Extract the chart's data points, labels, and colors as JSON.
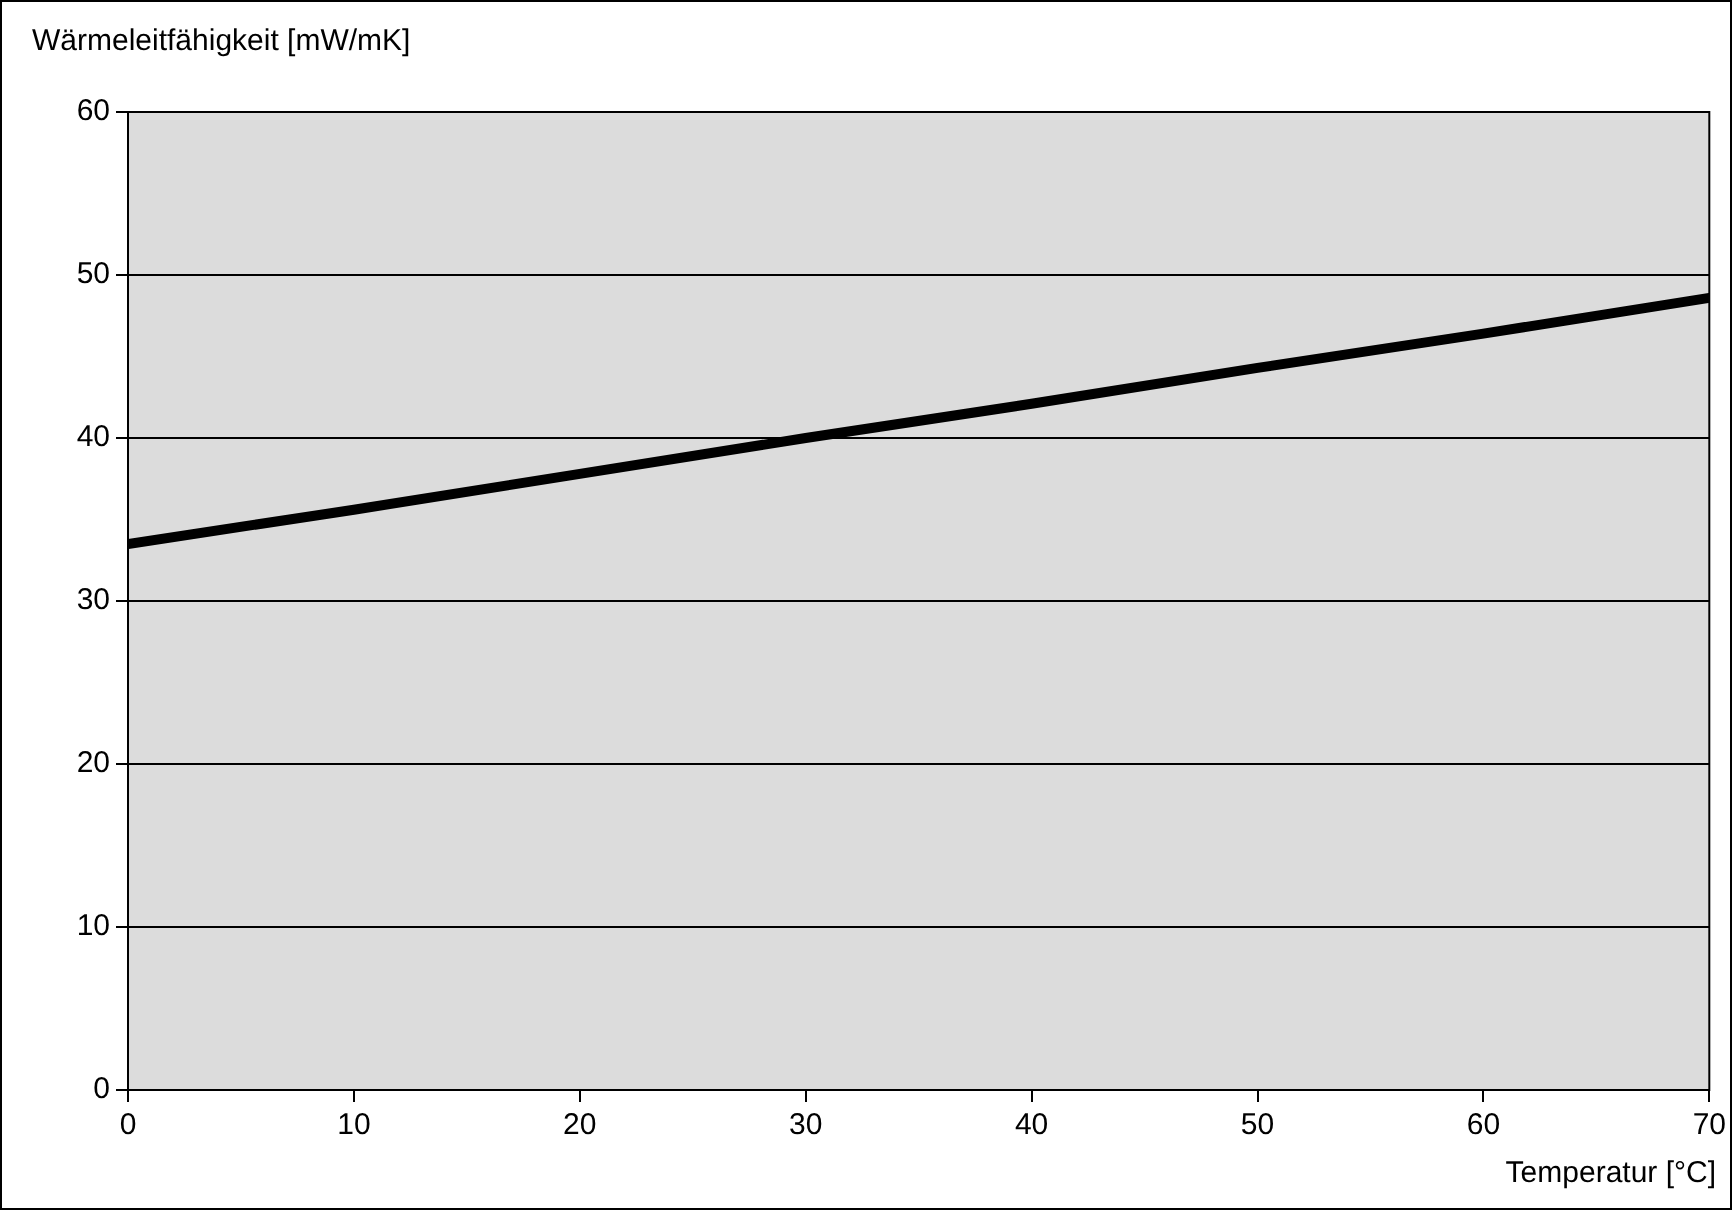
{
  "chart_data": {
    "type": "line",
    "xlabel": "Temperatur [°C]",
    "ylabel": "Wärmeleitfähigkeit [mW/mK]",
    "x": [
      0,
      10,
      20,
      30,
      40,
      50,
      60,
      70
    ],
    "series": [
      {
        "color": "#000000",
        "values": [
          33.5,
          35.6,
          37.8,
          40.0,
          42.1,
          44.3,
          46.4,
          48.6
        ]
      }
    ],
    "xlim": [
      0,
      70
    ],
    "xticks": [
      0,
      10,
      20,
      30,
      40,
      50,
      60,
      70
    ],
    "ylim": [
      0,
      60
    ],
    "yticks": [
      0,
      10,
      20,
      30,
      40,
      50,
      60
    ],
    "grid": "y",
    "legend": false,
    "marker": "none",
    "line_style": "solid"
  }
}
